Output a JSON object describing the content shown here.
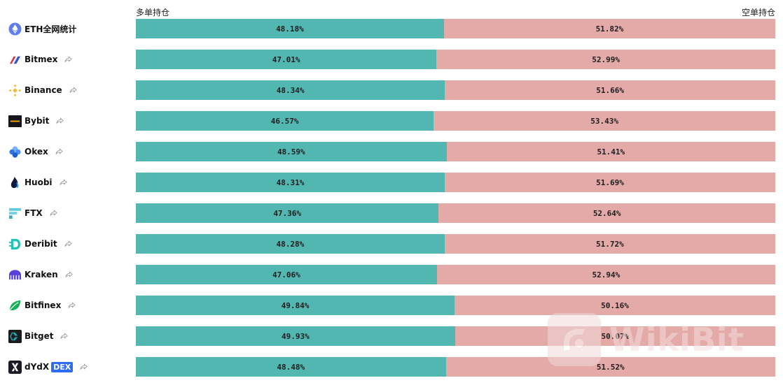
{
  "header": {
    "long_label": "多单持仓",
    "short_label": "空单持仓"
  },
  "colors": {
    "long": "#52b6b1",
    "short": "#e4aaa8"
  },
  "rows": [
    {
      "id": "eth",
      "name": "ETH全网统计",
      "long": "48.18%",
      "short": "51.82%",
      "long_pct": 48.18,
      "share": false
    },
    {
      "id": "bitmex",
      "name": "Bitmex",
      "long": "47.01%",
      "short": "52.99%",
      "long_pct": 47.01,
      "share": true
    },
    {
      "id": "binance",
      "name": "Binance",
      "long": "48.34%",
      "short": "51.66%",
      "long_pct": 48.34,
      "share": true
    },
    {
      "id": "bybit",
      "name": "Bybit",
      "long": "46.57%",
      "short": "53.43%",
      "long_pct": 46.57,
      "share": true
    },
    {
      "id": "okex",
      "name": "Okex",
      "long": "48.59%",
      "short": "51.41%",
      "long_pct": 48.59,
      "share": true
    },
    {
      "id": "huobi",
      "name": "Huobi",
      "long": "48.31%",
      "short": "51.69%",
      "long_pct": 48.31,
      "share": true
    },
    {
      "id": "ftx",
      "name": "FTX",
      "long": "47.36%",
      "short": "52.64%",
      "long_pct": 47.36,
      "share": true
    },
    {
      "id": "deribit",
      "name": "Deribit",
      "long": "48.28%",
      "short": "51.72%",
      "long_pct": 48.28,
      "share": true
    },
    {
      "id": "kraken",
      "name": "Kraken",
      "long": "47.06%",
      "short": "52.94%",
      "long_pct": 47.06,
      "share": true
    },
    {
      "id": "bitfinex",
      "name": "Bitfinex",
      "long": "49.84%",
      "short": "50.16%",
      "long_pct": 49.84,
      "share": true
    },
    {
      "id": "bitget",
      "name": "Bitget",
      "long": "49.93%",
      "short": "50.07%",
      "long_pct": 49.93,
      "share": true
    },
    {
      "id": "dydx",
      "name": "dYdX",
      "badge": "DEX",
      "long": "48.48%",
      "short": "51.52%",
      "long_pct": 48.48,
      "share": true
    }
  ],
  "watermark": {
    "text": "WikiBit"
  }
}
